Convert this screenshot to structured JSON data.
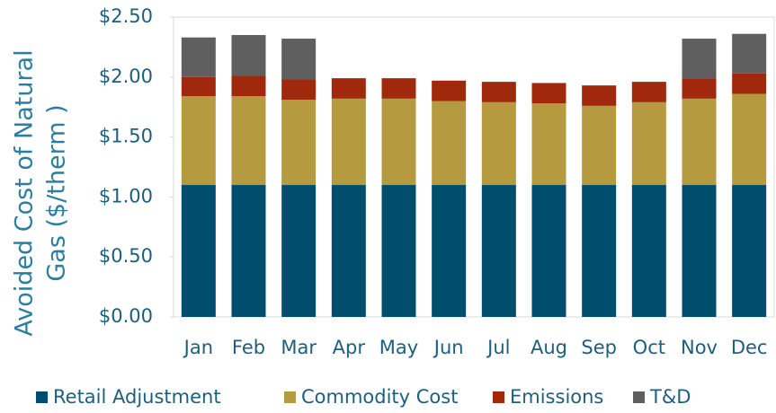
{
  "chart_data": {
    "type": "stacked_bar",
    "y_label": [
      "Avoided Cost of Natural",
      "Gas ($/therm )"
    ],
    "categories": [
      "Jan",
      "Feb",
      "Mar",
      "Apr",
      "May",
      "Jun",
      "Jul",
      "Aug",
      "Sep",
      "Oct",
      "Nov",
      "Dec"
    ],
    "series": [
      {
        "name": "Retail Adjustment",
        "color": "#004d6e",
        "values": [
          1.1,
          1.1,
          1.1,
          1.1,
          1.1,
          1.1,
          1.1,
          1.1,
          1.1,
          1.1,
          1.1,
          1.1
        ]
      },
      {
        "name": "Commodity Cost",
        "color": "#b59a3f",
        "values": [
          0.74,
          0.74,
          0.71,
          0.72,
          0.72,
          0.7,
          0.69,
          0.68,
          0.66,
          0.69,
          0.72,
          0.76
        ]
      },
      {
        "name": "Emissions",
        "color": "#a0290d",
        "values": [
          0.16,
          0.17,
          0.17,
          0.17,
          0.17,
          0.17,
          0.17,
          0.17,
          0.17,
          0.17,
          0.17,
          0.17
        ]
      },
      {
        "name": "T&D",
        "color": "#5f5f5f",
        "values": [
          0.33,
          0.34,
          0.34,
          0,
          0,
          0,
          0,
          0,
          0,
          0,
          0.33,
          0.33
        ]
      }
    ],
    "ylim": [
      0,
      2.5
    ],
    "yticks": [
      {
        "value": 0,
        "label": "$0.00"
      },
      {
        "value": 0.5,
        "label": "$0.50"
      },
      {
        "value": 1,
        "label": "$1.00"
      },
      {
        "value": 1.5,
        "label": "$1.50"
      },
      {
        "value": 2,
        "label": "$2.00"
      },
      {
        "value": 2.5,
        "label": "$2.50"
      }
    ],
    "legend": "bottom"
  }
}
